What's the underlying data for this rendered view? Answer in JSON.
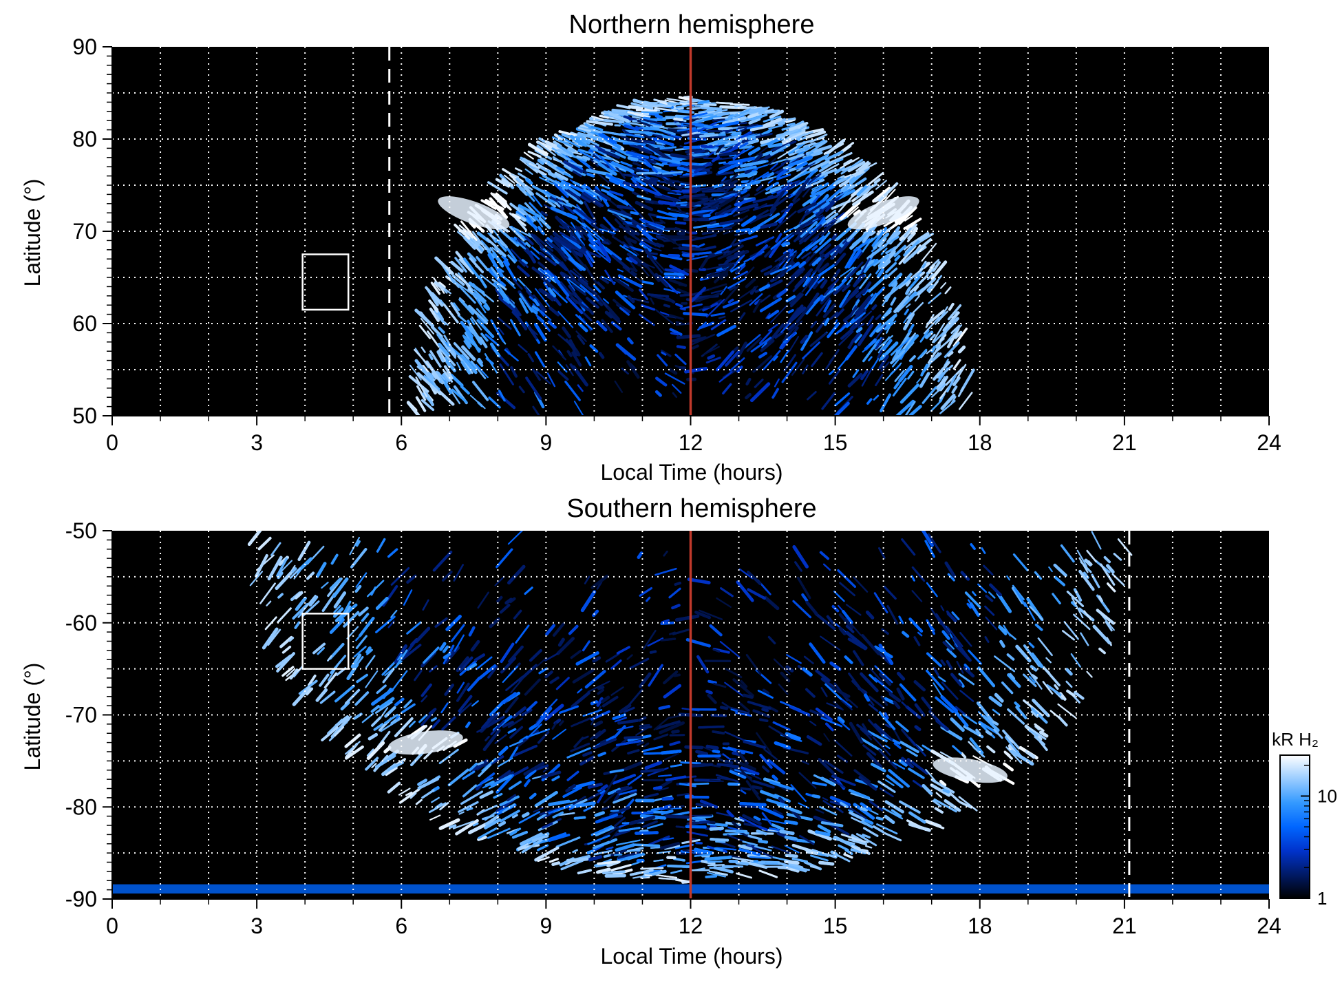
{
  "chart_data": [
    {
      "type": "heatmap",
      "title": "Northern hemisphere",
      "xlabel": "Local Time (hours)",
      "ylabel": "Latitude (°)",
      "xlim": [
        0,
        24
      ],
      "ylim": [
        50,
        90
      ],
      "xticks": [
        0,
        3,
        6,
        9,
        12,
        15,
        18,
        21,
        24
      ],
      "xtick_labels": [
        "0",
        "3",
        "6",
        "9",
        "12",
        "15",
        "18",
        "21",
        "24"
      ],
      "yticks": [
        50,
        60,
        70,
        80,
        90
      ],
      "ytick_labels": [
        "50",
        "60",
        "70",
        "80",
        "90"
      ],
      "grid": true,
      "noon_line_x": 12,
      "noon_line_color": "#c0392b",
      "dashed_line_x": 5.75,
      "box": {
        "x": [
          3.95,
          4.9
        ],
        "y": [
          61.5,
          67.5
        ]
      },
      "emission_extent": {
        "lt_range": [
          6.3,
          17.7
        ],
        "lat_top": 85.3
      },
      "bright_regions": [
        {
          "lt": 7.5,
          "lat": 72
        },
        {
          "lt": 16.0,
          "lat": 72
        }
      ],
      "map": {
        "type": "heatmap",
        "z_max": 2.0
      }
    },
    {
      "type": "heatmap",
      "title": "Southern hemisphere",
      "xlabel": "Local Time (hours)",
      "ylabel": "Latitude (°)",
      "xlim": [
        0,
        24
      ],
      "ylim": [
        -90,
        -50
      ],
      "xticks": [
        0,
        3,
        6,
        9,
        12,
        15,
        18,
        21,
        24
      ],
      "xtick_labels": [
        "0",
        "3",
        "6",
        "9",
        "12",
        "15",
        "18",
        "21",
        "24"
      ],
      "yticks": [
        -90,
        -80,
        -70,
        -60,
        -50
      ],
      "ytick_labels": [
        "-90",
        "-80",
        "-70",
        "-60",
        "-50"
      ],
      "grid": true,
      "noon_line_x": 12,
      "noon_line_color": "#c0392b",
      "dashed_line_x": 21.1,
      "box": {
        "x": [
          3.95,
          4.9
        ],
        "y": [
          -65,
          -59
        ]
      },
      "emission_extent": {
        "lt_range": [
          3,
          21
        ],
        "lat_bottom": -89
      },
      "bright_regions": [
        {
          "lt": 6.5,
          "lat": -73
        },
        {
          "lt": 17.8,
          "lat": -76
        }
      ],
      "map": {
        "type": "heatmap",
        "z_max": 2.0
      }
    }
  ],
  "colorbar": {
    "title": "kR H₂",
    "ticks": [
      {
        "label": "1",
        "log_value": 0
      },
      {
        "label": "10",
        "log_value": 1
      }
    ],
    "log_max": 1.4,
    "stops": [
      "#000000",
      "#001a66",
      "#0033cc",
      "#0066ff",
      "#3399ff",
      "#99ccff",
      "#ffffff"
    ]
  }
}
